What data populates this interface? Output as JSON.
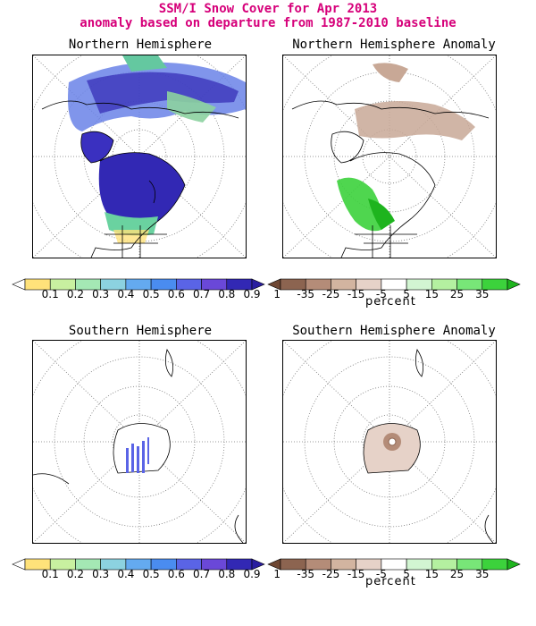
{
  "header": {
    "line1": "SSM/I Snow Cover for Apr 2013",
    "line2": "anomaly based on departure from 1987-2010 baseline"
  },
  "panels": {
    "nh": {
      "title": "Northern Hemisphere"
    },
    "nh_anom": {
      "title": "Northern Hemisphere Anomaly"
    },
    "sh": {
      "title": "Southern Hemisphere"
    },
    "sh_anom": {
      "title": "Southern Hemisphere Anomaly"
    }
  },
  "colorbars": {
    "cover": {
      "labels": [
        "0.1",
        "0.2",
        "0.3",
        "0.4",
        "0.5",
        "0.6",
        "0.7",
        "0.8",
        "0.9",
        "1"
      ],
      "colors": [
        "#ffffff",
        "#ffe27a",
        "#c8f0a0",
        "#a4e8b4",
        "#8cd2e0",
        "#64aaf0",
        "#4a8cf0",
        "#5a64e6",
        "#6a48d8",
        "#3228b4",
        "#2a1ea0"
      ]
    },
    "anomaly": {
      "labels": [
        "-35",
        "-25",
        "-15",
        "-5",
        "5",
        "15",
        "25",
        "35"
      ],
      "colors": [
        "#6e4632",
        "#8c6450",
        "#b48c78",
        "#d2b4a0",
        "#e6d2c8",
        "#ffffff",
        "#d2f5d2",
        "#b4f0a0",
        "#78e678",
        "#3cd23c",
        "#1eb41e"
      ],
      "unit": "percent"
    }
  },
  "colors": {
    "title": "#d6007a",
    "dotted_grid": "#777777",
    "land_outline": "#000000"
  }
}
